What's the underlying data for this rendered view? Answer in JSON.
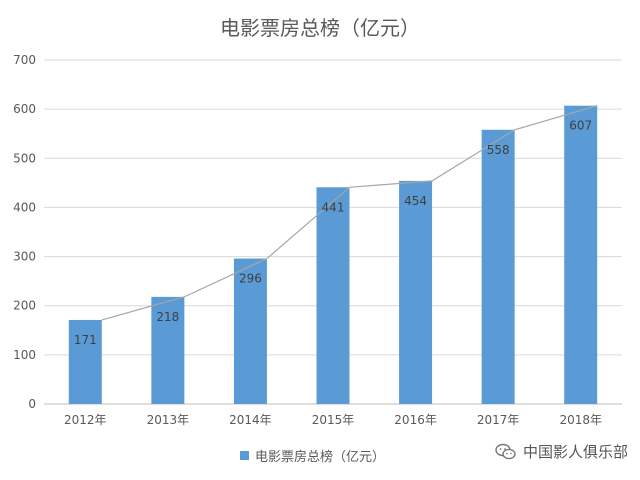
{
  "chart_data": {
    "type": "bar",
    "title": "电影票房总榜（亿元）",
    "categories": [
      "2012年",
      "2013年",
      "2014年",
      "2015年",
      "2016年",
      "2017年",
      "2018年"
    ],
    "series": [
      {
        "name": "电影票房总榜（亿元）",
        "values": [
          171,
          218,
          296,
          441,
          454,
          558,
          607
        ],
        "color": "#5B9BD5"
      }
    ],
    "trend_line": {
      "values": [
        171,
        218,
        296,
        441,
        454,
        558,
        607
      ],
      "color": "#A6A6A6"
    },
    "ylim": [
      0,
      700
    ],
    "yticks": [
      "0",
      "100",
      "200",
      "300",
      "400",
      "500",
      "600",
      "700"
    ],
    "grid": true,
    "legend_position": "bottom",
    "xlabel": "",
    "ylabel": ""
  },
  "watermark": {
    "text": "中国影人俱乐部",
    "icon": "wechat-icon"
  }
}
